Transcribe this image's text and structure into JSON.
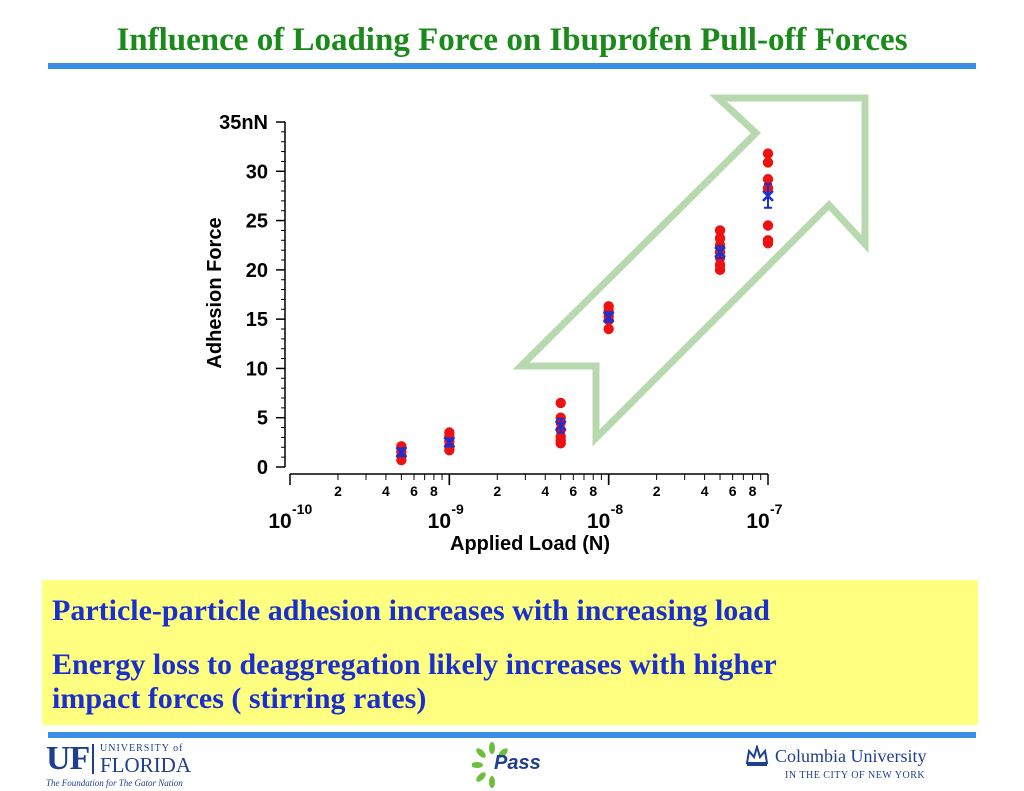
{
  "title": "Influence of Loading Force on Ibuprofen Pull-off Forces",
  "colors": {
    "title": "#1a8a1a",
    "rule": "#3a8ee6",
    "callout_bg": "#ffff80",
    "callout_text": "#1a2fd0",
    "red_points": "#ee1111",
    "blue_mean": "#1a2fd0",
    "arrow": "#b8d8b0"
  },
  "chart_data": {
    "type": "scatter",
    "xlabel": "Applied Load (N)",
    "ylabel": "Adhesion Force",
    "x_scale": "log",
    "xlim": [
      1e-10,
      1e-07
    ],
    "ylim": [
      0,
      35
    ],
    "y_ticks": [
      "0",
      "5",
      "10",
      "15",
      "20",
      "25",
      "30",
      "35nN"
    ],
    "y_tick_values": [
      0,
      5,
      10,
      15,
      20,
      25,
      30,
      35
    ],
    "x_major_ticks": [
      {
        "base": "10",
        "exp": "-10",
        "value": 1e-10
      },
      {
        "base": "10",
        "exp": "-9",
        "value": 1e-09
      },
      {
        "base": "10",
        "exp": "-8",
        "value": 1e-08
      },
      {
        "base": "10",
        "exp": "-7",
        "value": 1e-07
      }
    ],
    "x_minor_labels": [
      "2",
      "4",
      "6",
      "8"
    ],
    "series": [
      {
        "marker": "circle",
        "points": [
          {
            "x": 5e-10,
            "y": 2.1
          },
          {
            "x": 5e-10,
            "y": 1.6
          },
          {
            "x": 5e-10,
            "y": 1.2
          },
          {
            "x": 5e-10,
            "y": 0.7
          },
          {
            "x": 1e-09,
            "y": 3.5
          },
          {
            "x": 1e-09,
            "y": 3.1
          },
          {
            "x": 1e-09,
            "y": 2.6
          },
          {
            "x": 1e-09,
            "y": 2.1
          },
          {
            "x": 1e-09,
            "y": 1.7
          },
          {
            "x": 5e-09,
            "y": 6.5
          },
          {
            "x": 5e-09,
            "y": 5.0
          },
          {
            "x": 5e-09,
            "y": 4.5
          },
          {
            "x": 5e-09,
            "y": 3.8
          },
          {
            "x": 5e-09,
            "y": 3.1
          },
          {
            "x": 5e-09,
            "y": 2.7
          },
          {
            "x": 5e-09,
            "y": 2.4
          },
          {
            "x": 1e-08,
            "y": 16.3
          },
          {
            "x": 1e-08,
            "y": 15.8
          },
          {
            "x": 1e-08,
            "y": 15.3
          },
          {
            "x": 1e-08,
            "y": 14.9
          },
          {
            "x": 1e-08,
            "y": 14.0
          },
          {
            "x": 5e-08,
            "y": 24.0
          },
          {
            "x": 5e-08,
            "y": 23.2
          },
          {
            "x": 5e-08,
            "y": 22.5
          },
          {
            "x": 5e-08,
            "y": 21.8
          },
          {
            "x": 5e-08,
            "y": 21.2
          },
          {
            "x": 5e-08,
            "y": 20.5
          },
          {
            "x": 5e-08,
            "y": 20.0
          },
          {
            "x": 1e-07,
            "y": 31.8
          },
          {
            "x": 1e-07,
            "y": 30.9
          },
          {
            "x": 1e-07,
            "y": 29.2
          },
          {
            "x": 1e-07,
            "y": 28.3
          },
          {
            "x": 1e-07,
            "y": 24.5
          },
          {
            "x": 1e-07,
            "y": 23.0
          },
          {
            "x": 1e-07,
            "y": 22.7
          }
        ]
      },
      {
        "marker": "cross-with-error-bar",
        "points": [
          {
            "x": 5e-10,
            "y": 1.5,
            "err": 0.4
          },
          {
            "x": 1e-09,
            "y": 2.5,
            "err": 0.4
          },
          {
            "x": 5e-09,
            "y": 4.2,
            "err": 0.7
          },
          {
            "x": 1e-08,
            "y": 15.2,
            "err": 0.5
          },
          {
            "x": 5e-08,
            "y": 21.8,
            "err": 0.6
          },
          {
            "x": 1e-07,
            "y": 27.5,
            "err": 1.2
          }
        ]
      }
    ]
  },
  "callout": {
    "line1": "Particle-particle adhesion increases with increasing load",
    "line2": "Energy loss to deaggregation likely increases with higher",
    "line3": "impact forces ( stirring rates)"
  },
  "footer": {
    "uf": {
      "mark": "UF",
      "univ": "UNIVERSITY of",
      "name": "FLORIDA",
      "tagline": "The Foundation for The Gator Nation"
    },
    "pass": {
      "name": "Pass"
    },
    "columbia": {
      "name": "Columbia University",
      "sub": "IN THE CITY OF NEW YORK"
    }
  }
}
